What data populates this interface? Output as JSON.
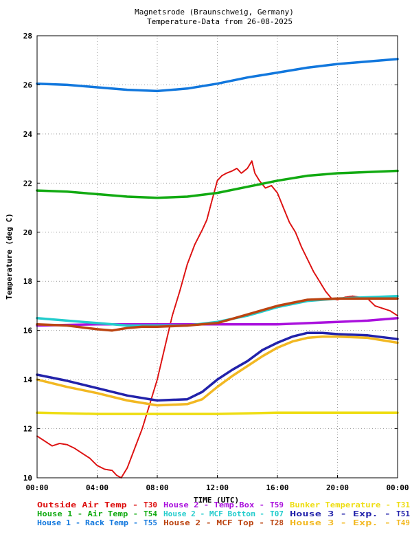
{
  "chart_data": {
    "type": "line",
    "title": "Magnetsrode (Braunschweig, Germany)",
    "subtitle": "Temperature-Data from 26-08-2025",
    "xlabel": "TIME (UTC)",
    "ylabel": "Temperature (deg C)",
    "xlim": [
      0,
      24
    ],
    "ylim": [
      10,
      28
    ],
    "x_tick_labels": [
      "00:00",
      "04:00",
      "08:00",
      "12:00",
      "16:00",
      "20:00",
      "00:00"
    ],
    "y_tick_labels": [
      "10",
      "12",
      "14",
      "16",
      "18",
      "20",
      "22",
      "24",
      "26",
      "28"
    ],
    "grid": true,
    "legend_placement": "bottom",
    "series": [
      {
        "name": "Outside Air Temp",
        "code": "T30",
        "color": "#dd1111",
        "points": [
          [
            0,
            11.7
          ],
          [
            0.5,
            11.5
          ],
          [
            1,
            11.3
          ],
          [
            1.5,
            11.4
          ],
          [
            2,
            11.35
          ],
          [
            2.5,
            11.2
          ],
          [
            3,
            11.0
          ],
          [
            3.5,
            10.8
          ],
          [
            4,
            10.5
          ],
          [
            4.5,
            10.35
          ],
          [
            5,
            10.3
          ],
          [
            5.3,
            10.1
          ],
          [
            5.6,
            10.0
          ],
          [
            6,
            10.4
          ],
          [
            6.5,
            11.2
          ],
          [
            7,
            12.0
          ],
          [
            7.5,
            13.0
          ],
          [
            8,
            14.0
          ],
          [
            8.5,
            15.3
          ],
          [
            9,
            16.6
          ],
          [
            9.5,
            17.6
          ],
          [
            10,
            18.7
          ],
          [
            10.5,
            19.5
          ],
          [
            11,
            20.1
          ],
          [
            11.3,
            20.5
          ],
          [
            11.6,
            21.2
          ],
          [
            12,
            22.1
          ],
          [
            12.3,
            22.3
          ],
          [
            12.6,
            22.4
          ],
          [
            13,
            22.5
          ],
          [
            13.3,
            22.6
          ],
          [
            13.6,
            22.4
          ],
          [
            14,
            22.6
          ],
          [
            14.3,
            22.9
          ],
          [
            14.5,
            22.4
          ],
          [
            14.8,
            22.1
          ],
          [
            15.2,
            21.8
          ],
          [
            15.6,
            21.9
          ],
          [
            16,
            21.6
          ],
          [
            16.4,
            21.0
          ],
          [
            16.8,
            20.4
          ],
          [
            17.2,
            20.0
          ],
          [
            17.6,
            19.4
          ],
          [
            18,
            18.9
          ],
          [
            18.4,
            18.4
          ],
          [
            18.8,
            18.0
          ],
          [
            19.2,
            17.6
          ],
          [
            19.6,
            17.3
          ],
          [
            20,
            17.25
          ],
          [
            20.5,
            17.35
          ],
          [
            21,
            17.4
          ],
          [
            21.5,
            17.35
          ],
          [
            22,
            17.3
          ],
          [
            22.5,
            17.0
          ],
          [
            23,
            16.9
          ],
          [
            23.5,
            16.8
          ],
          [
            24,
            16.6
          ]
        ]
      },
      {
        "name": "House 1 - Air  Temp",
        "code": "T54",
        "color": "#11aa11",
        "points": [
          [
            0,
            21.7
          ],
          [
            2,
            21.65
          ],
          [
            4,
            21.55
          ],
          [
            6,
            21.45
          ],
          [
            8,
            21.4
          ],
          [
            10,
            21.45
          ],
          [
            12,
            21.6
          ],
          [
            14,
            21.85
          ],
          [
            16,
            22.1
          ],
          [
            18,
            22.3
          ],
          [
            20,
            22.4
          ],
          [
            22,
            22.45
          ],
          [
            24,
            22.5
          ]
        ]
      },
      {
        "name": "House 1 - Rack Temp",
        "code": "T55",
        "color": "#1177dd",
        "points": [
          [
            0,
            26.05
          ],
          [
            2,
            26.0
          ],
          [
            4,
            25.9
          ],
          [
            6,
            25.8
          ],
          [
            8,
            25.75
          ],
          [
            10,
            25.85
          ],
          [
            12,
            26.05
          ],
          [
            14,
            26.3
          ],
          [
            16,
            26.5
          ],
          [
            18,
            26.7
          ],
          [
            20,
            26.85
          ],
          [
            22,
            26.95
          ],
          [
            24,
            27.05
          ]
        ]
      },
      {
        "name": "House 2 - Temp.Box",
        "code": "T59",
        "color": "#aa11dd",
        "points": [
          [
            0,
            16.2
          ],
          [
            4,
            16.25
          ],
          [
            8,
            16.25
          ],
          [
            12,
            16.25
          ],
          [
            16,
            16.25
          ],
          [
            20,
            16.35
          ],
          [
            22,
            16.4
          ],
          [
            24,
            16.5
          ]
        ]
      },
      {
        "name": "House 2 - MCF Bottom",
        "code": "T07",
        "color": "#22cccc",
        "points": [
          [
            0,
            16.5
          ],
          [
            2,
            16.4
          ],
          [
            4,
            16.3
          ],
          [
            6,
            16.2
          ],
          [
            8,
            16.2
          ],
          [
            10,
            16.2
          ],
          [
            12,
            16.35
          ],
          [
            14,
            16.6
          ],
          [
            16,
            16.95
          ],
          [
            18,
            17.2
          ],
          [
            20,
            17.3
          ],
          [
            22,
            17.35
          ],
          [
            24,
            17.4
          ]
        ]
      },
      {
        "name": "House 2 - MCF Top",
        "code": "T28",
        "color": "#bb4411",
        "points": [
          [
            0,
            16.25
          ],
          [
            2,
            16.2
          ],
          [
            4,
            16.05
          ],
          [
            5,
            16.0
          ],
          [
            6,
            16.1
          ],
          [
            7,
            16.15
          ],
          [
            8,
            16.15
          ],
          [
            10,
            16.2
          ],
          [
            12,
            16.3
          ],
          [
            14,
            16.65
          ],
          [
            16,
            17.0
          ],
          [
            18,
            17.25
          ],
          [
            20,
            17.3
          ],
          [
            22,
            17.3
          ],
          [
            24,
            17.3
          ]
        ]
      },
      {
        "name": "Bunker Temperature",
        "code": "T31",
        "color": "#eedd11",
        "points": [
          [
            0,
            12.65
          ],
          [
            4,
            12.6
          ],
          [
            8,
            12.6
          ],
          [
            12,
            12.6
          ],
          [
            16,
            12.65
          ],
          [
            20,
            12.65
          ],
          [
            24,
            12.65
          ]
        ]
      },
      {
        "name": "House 3 - Exp.",
        "code": "T51",
        "color": "#2222aa",
        "points": [
          [
            0,
            14.2
          ],
          [
            2,
            13.95
          ],
          [
            4,
            13.65
          ],
          [
            6,
            13.35
          ],
          [
            8,
            13.15
          ],
          [
            10,
            13.2
          ],
          [
            11,
            13.5
          ],
          [
            12,
            14.0
          ],
          [
            13,
            14.4
          ],
          [
            14,
            14.75
          ],
          [
            15,
            15.2
          ],
          [
            16,
            15.5
          ],
          [
            17,
            15.75
          ],
          [
            18,
            15.9
          ],
          [
            19,
            15.9
          ],
          [
            20,
            15.85
          ],
          [
            22,
            15.8
          ],
          [
            24,
            15.65
          ]
        ]
      },
      {
        "name": "House 3 - Exp.",
        "code": "T49",
        "color": "#f2b822",
        "points": [
          [
            0,
            14.0
          ],
          [
            2,
            13.7
          ],
          [
            4,
            13.45
          ],
          [
            6,
            13.15
          ],
          [
            8,
            12.95
          ],
          [
            10,
            13.0
          ],
          [
            11,
            13.2
          ],
          [
            12,
            13.7
          ],
          [
            13,
            14.15
          ],
          [
            14,
            14.55
          ],
          [
            15,
            14.95
          ],
          [
            16,
            15.3
          ],
          [
            17,
            15.55
          ],
          [
            18,
            15.7
          ],
          [
            19,
            15.75
          ],
          [
            20,
            15.75
          ],
          [
            22,
            15.7
          ],
          [
            24,
            15.5
          ]
        ]
      }
    ]
  }
}
